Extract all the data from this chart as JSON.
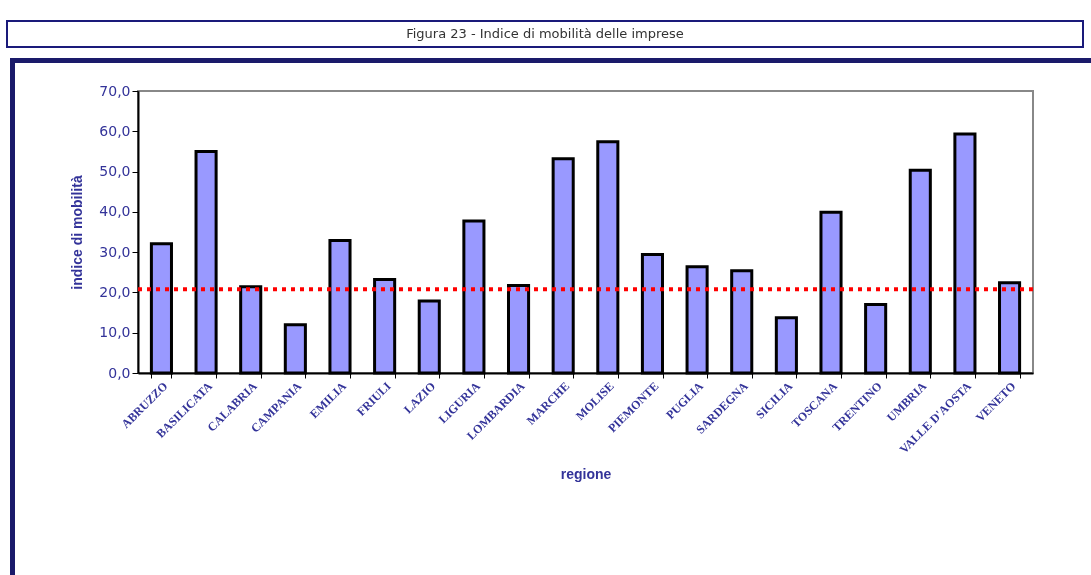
{
  "chart_data": {
    "type": "bar",
    "title": "Figura 23 - Indice di mobilità delle imprese",
    "xlabel": "regione",
    "ylabel": "indice di mobilità",
    "categories": [
      "ABRUZZO",
      "BASILICATA",
      "CALABRIA",
      "CAMPANIA",
      "EMILIA",
      "FRIULI",
      "LAZIO",
      "LIGURIA",
      "LOMBARDIA",
      "MARCHE",
      "MOLISE",
      "PIEMONTE",
      "PUGLIA",
      "SARDEGNA",
      "SICILIA",
      "TOSCANA",
      "TRENTINO",
      "UMBRIA",
      "VALLE D'AOSTA",
      "VENETO"
    ],
    "values": [
      32.1,
      55.0,
      21.4,
      12.0,
      32.9,
      23.2,
      17.9,
      37.7,
      21.7,
      53.2,
      57.4,
      29.4,
      26.4,
      25.4,
      13.7,
      39.9,
      17.0,
      50.3,
      59.3,
      22.4
    ],
    "color": "#9999ff",
    "ylim": [
      0,
      70
    ],
    "yticks": [
      {
        "value": 0,
        "label": "0,0"
      },
      {
        "value": 10,
        "label": "10,0"
      },
      {
        "value": 20,
        "label": "20,0"
      },
      {
        "value": 30,
        "label": "30,0"
      },
      {
        "value": 40,
        "label": "40,0"
      },
      {
        "value": 50,
        "label": "50,0"
      },
      {
        "value": 60,
        "label": "60,0"
      },
      {
        "value": 70,
        "label": "70,0"
      }
    ],
    "ref_lines": [
      {
        "axis": "y",
        "value": 20.8,
        "color": "#ff0000",
        "line_style": "dotted"
      }
    ],
    "grid": false
  }
}
